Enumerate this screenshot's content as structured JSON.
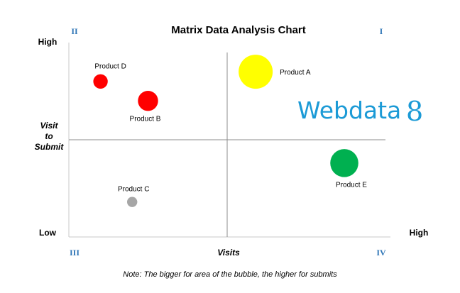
{
  "chart_data": {
    "type": "scatter",
    "title": "Matrix Data Analysis Chart",
    "xlabel": "Visits",
    "ylabel": [
      "Visit",
      "to",
      "Submit"
    ],
    "x_low": "Low",
    "x_high": "High",
    "y_high": "High",
    "xlim": [
      0,
      100
    ],
    "ylim": [
      0,
      100
    ],
    "quadrant_dividers": {
      "x": 50,
      "y": 50
    },
    "quadrant_labels": {
      "top_left": "II",
      "top_right": "I",
      "bottom_left": "III",
      "bottom_right": "IV"
    },
    "grid": false,
    "legend": "none",
    "points": [
      {
        "label": "Product A",
        "x": 59,
        "y": 85,
        "size": 10,
        "color": "#ffff00"
      },
      {
        "label": "Product B",
        "x": 25,
        "y": 70,
        "size": 3.5,
        "color": "#ff0000"
      },
      {
        "label": "Product C",
        "x": 20,
        "y": 18,
        "size": 0.9,
        "color": "#a6a6a6"
      },
      {
        "label": "Product D",
        "x": 10,
        "y": 80,
        "size": 1.8,
        "color": "#ff0000"
      },
      {
        "label": "Product E",
        "x": 87,
        "y": 38,
        "size": 6.8,
        "color": "#00b050"
      }
    ],
    "note": "Note: The bigger for area of the bubble, the higher for submits"
  },
  "watermark": {
    "text": "Webdata",
    "digit": "8",
    "color": "#1b9ad6"
  }
}
